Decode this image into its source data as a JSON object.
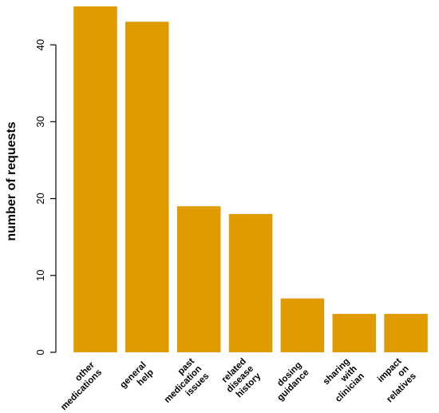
{
  "chart_data": {
    "type": "bar",
    "categories": [
      [
        "other",
        "medications"
      ],
      [
        "general",
        "help"
      ],
      [
        "past",
        "medication",
        "issues"
      ],
      [
        "related",
        "disease",
        "history"
      ],
      [
        "dosing",
        "guidance"
      ],
      [
        "sharing",
        "with",
        "clinician"
      ],
      [
        "impact",
        "on",
        "relatives"
      ]
    ],
    "values": [
      45,
      43,
      19,
      18,
      7,
      5,
      5
    ],
    "ylabel": "number of requests",
    "xlabel": "",
    "ylim": [
      0,
      45
    ],
    "yticks": [
      0,
      10,
      20,
      30,
      40
    ],
    "grid": false,
    "legend": "none",
    "bar_color": "#E09B00"
  }
}
